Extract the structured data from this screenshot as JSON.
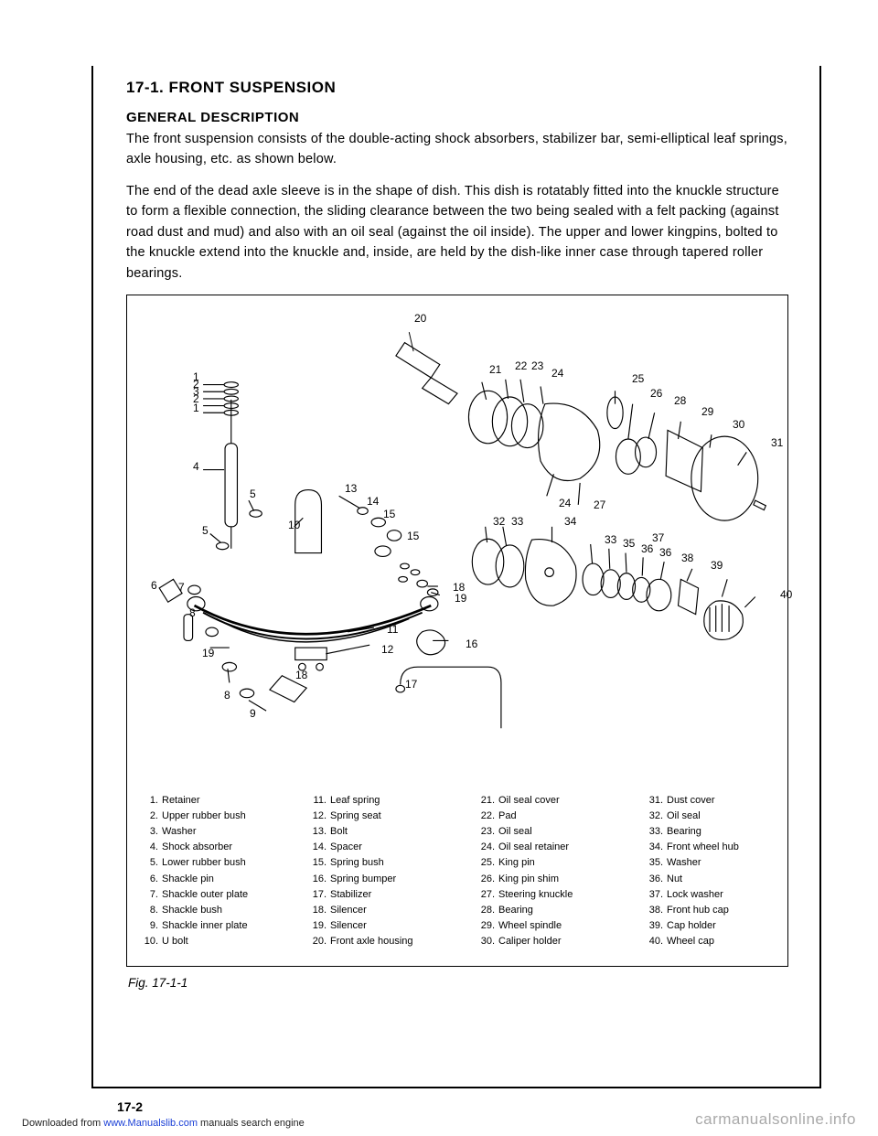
{
  "section": {
    "number": "17-1.",
    "title": "FRONT SUSPENSION"
  },
  "subhead": "GENERAL DESCRIPTION",
  "paragraphs": [
    "The front suspension consists of the double-acting shock absorbers, stabilizer bar, semi-elliptical leaf springs, axle housing, etc. as shown below.",
    "The end of the dead axle sleeve is in the shape of dish. This dish is rotatably fitted into the knuckle structure to form a flexible connection, the sliding clearance between the two being sealed with a felt packing (against road dust and mud) and also with an oil seal (against the oil inside). The upper and lower kingpins, bolted to the knuckle extend into the knuckle and, inside, are held by the dish-like inner case through tapered roller bearings."
  ],
  "callouts": {
    "left_stack": [
      "1",
      "2",
      "3",
      "2",
      "1"
    ],
    "others": {
      "c4": "4",
      "c5a": "5",
      "c5b": "5",
      "c6": "6",
      "c7": "7",
      "c8a": "8",
      "c8b": "8",
      "c9": "9",
      "c10": "10",
      "c11": "11",
      "c12": "12",
      "c13": "13",
      "c14": "14",
      "c15a": "15",
      "c15b": "15",
      "c16": "16",
      "c17": "17",
      "c18a": "18",
      "c18b": "18",
      "c19a": "19",
      "c19b": "19",
      "c20": "20",
      "c21": "21",
      "c22": "22",
      "c23": "23",
      "c24a": "24",
      "c24b": "24",
      "c25": "25",
      "c26": "26",
      "c27": "27",
      "c28": "28",
      "c29": "29",
      "c30": "30",
      "c31": "31",
      "c32": "32",
      "c33a": "33",
      "c33b": "33",
      "c34": "34",
      "c35": "35",
      "c36a": "36",
      "c36b": "36",
      "c37": "37",
      "c38": "38",
      "c39": "39",
      "c40": "40"
    }
  },
  "parts": [
    {
      "n": "1",
      "t": "Retainer"
    },
    {
      "n": "2",
      "t": "Upper rubber bush"
    },
    {
      "n": "3",
      "t": "Washer"
    },
    {
      "n": "4",
      "t": "Shock absorber"
    },
    {
      "n": "5",
      "t": "Lower rubber bush"
    },
    {
      "n": "6",
      "t": "Shackle pin"
    },
    {
      "n": "7",
      "t": "Shackle outer plate"
    },
    {
      "n": "8",
      "t": "Shackle bush"
    },
    {
      "n": "9",
      "t": "Shackle inner plate"
    },
    {
      "n": "10",
      "t": "U bolt"
    },
    {
      "n": "11",
      "t": "Leaf spring"
    },
    {
      "n": "12",
      "t": "Spring seat"
    },
    {
      "n": "13",
      "t": "Bolt"
    },
    {
      "n": "14",
      "t": "Spacer"
    },
    {
      "n": "15",
      "t": "Spring bush"
    },
    {
      "n": "16",
      "t": "Spring bumper"
    },
    {
      "n": "17",
      "t": "Stabilizer"
    },
    {
      "n": "18",
      "t": "Silencer"
    },
    {
      "n": "19",
      "t": "Silencer"
    },
    {
      "n": "20",
      "t": "Front axle housing"
    },
    {
      "n": "21",
      "t": "Oil seal cover"
    },
    {
      "n": "22",
      "t": "Pad"
    },
    {
      "n": "23",
      "t": "Oil seal"
    },
    {
      "n": "24",
      "t": "Oil seal retainer"
    },
    {
      "n": "25",
      "t": "King pin"
    },
    {
      "n": "26",
      "t": "King pin shim"
    },
    {
      "n": "27",
      "t": "Steering knuckle"
    },
    {
      "n": "28",
      "t": "Bearing"
    },
    {
      "n": "29",
      "t": "Wheel spindle"
    },
    {
      "n": "30",
      "t": "Caliper holder"
    },
    {
      "n": "31",
      "t": "Dust cover"
    },
    {
      "n": "32",
      "t": "Oil seal"
    },
    {
      "n": "33",
      "t": "Bearing"
    },
    {
      "n": "34",
      "t": "Front wheel hub"
    },
    {
      "n": "35",
      "t": "Washer"
    },
    {
      "n": "36",
      "t": "Nut"
    },
    {
      "n": "37",
      "t": "Lock washer"
    },
    {
      "n": "38",
      "t": "Front hub cap"
    },
    {
      "n": "39",
      "t": "Cap holder"
    },
    {
      "n": "40",
      "t": "Wheel cap"
    }
  ],
  "figure_caption": "Fig. 17-1-1",
  "page_number": "17-2",
  "footer": {
    "pre": "Downloaded from ",
    "link": "www.Manualslib.com",
    "post": " manuals search engine"
  },
  "watermark": "carmanualsonline.info",
  "diagram": {
    "stroke": "#000",
    "stroke_width": 1.2,
    "font_size_callout": 12
  }
}
